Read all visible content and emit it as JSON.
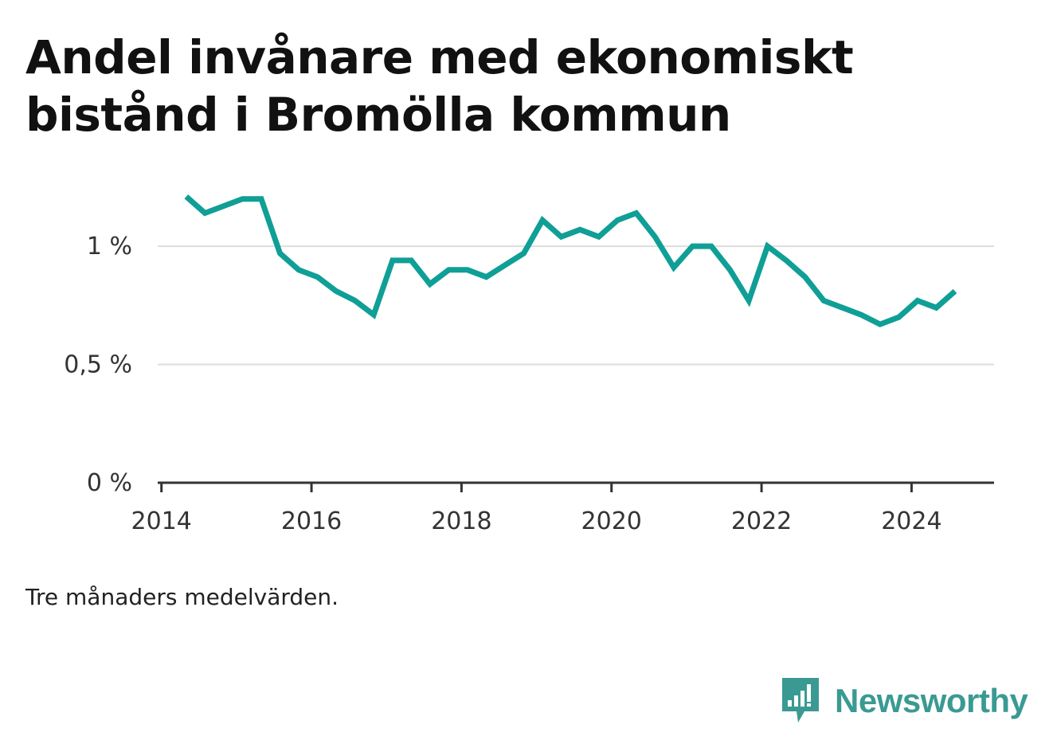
{
  "title": "Andel invånare med ekonomiskt bistånd i Bromölla kommun",
  "note": "Tre månaders medelvärden.",
  "brand": {
    "name": "Newsworthy",
    "icon": "newsworthy-logo-icon",
    "color": "#3a9a93"
  },
  "chart_data": {
    "type": "line",
    "line_color": "#0f9f96",
    "grid": true,
    "ylim": [
      0,
      1.3
    ],
    "xlim": [
      2013.95,
      2025.1
    ],
    "y_ticks": [
      {
        "value": 0,
        "label": "0 %"
      },
      {
        "value": 0.5,
        "label": "0,5 %"
      },
      {
        "value": 1.0,
        "label": "1 %"
      }
    ],
    "x_ticks": [
      {
        "value": 2014,
        "label": "2014"
      },
      {
        "value": 2016,
        "label": "2016"
      },
      {
        "value": 2018,
        "label": "2018"
      },
      {
        "value": 2020,
        "label": "2020"
      },
      {
        "value": 2022,
        "label": "2022"
      },
      {
        "value": 2024,
        "label": "2024"
      }
    ],
    "series": [
      {
        "x": [
          2014.33,
          2014.58,
          2014.83,
          2015.08,
          2015.33,
          2015.58,
          2015.83,
          2016.08,
          2016.33,
          2016.58,
          2016.83,
          2017.08,
          2017.33,
          2017.58,
          2017.83,
          2018.08,
          2018.33,
          2018.58,
          2018.83,
          2019.08,
          2019.33,
          2019.58,
          2019.83,
          2020.08,
          2020.33,
          2020.58,
          2020.83,
          2021.08,
          2021.33,
          2021.58,
          2021.83,
          2022.08,
          2022.33,
          2022.58,
          2022.83,
          2023.08,
          2023.33,
          2023.58,
          2023.83,
          2024.08,
          2024.33,
          2024.58
        ],
        "y": [
          1.21,
          1.14,
          1.17,
          1.2,
          1.2,
          0.97,
          0.9,
          0.87,
          0.81,
          0.77,
          0.71,
          0.94,
          0.94,
          0.84,
          0.9,
          0.9,
          0.87,
          0.92,
          0.97,
          1.11,
          1.04,
          1.07,
          1.04,
          1.11,
          1.14,
          1.04,
          0.91,
          1.0,
          1.0,
          0.9,
          0.77,
          1.0,
          0.94,
          0.87,
          0.77,
          0.74,
          0.71,
          0.67,
          0.7,
          0.77,
          0.74,
          0.81
        ]
      }
    ]
  }
}
